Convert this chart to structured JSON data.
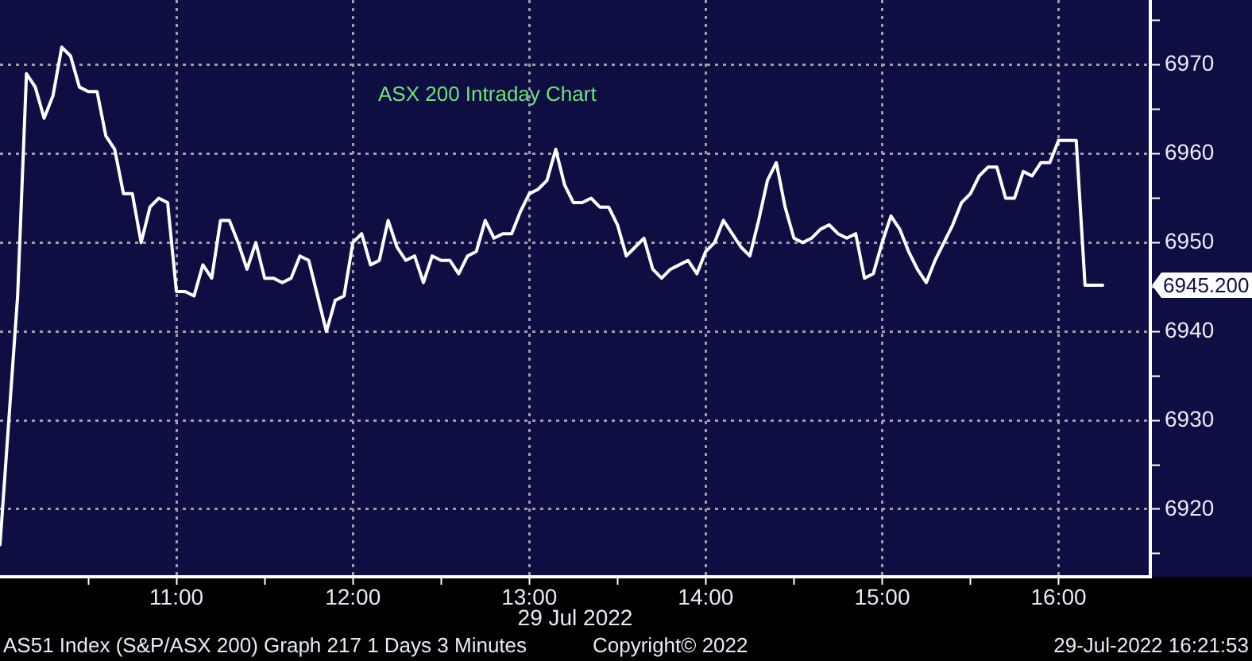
{
  "chart_data": {
    "type": "line",
    "title": "ASX 200 Intraday Chart",
    "xlabel": "29 Jul 2022",
    "x": [
      10,
      10.05,
      10.1,
      10.15,
      10.2,
      10.25,
      10.3,
      10.35,
      10.4,
      10.45,
      10.5,
      10.55,
      10.6,
      10.65,
      10.7,
      10.75,
      10.8,
      10.85,
      10.9,
      10.95,
      11,
      11.05,
      11.1,
      11.15,
      11.2,
      11.25,
      11.3,
      11.35,
      11.4,
      11.45,
      11.5,
      11.55,
      11.6,
      11.65,
      11.7,
      11.75,
      11.8,
      11.85,
      11.9,
      11.95,
      12,
      12.05,
      12.1,
      12.15,
      12.2,
      12.25,
      12.3,
      12.35,
      12.4,
      12.45,
      12.5,
      12.55,
      12.6,
      12.65,
      12.7,
      12.75,
      12.8,
      12.85,
      12.9,
      12.95,
      13,
      13.05,
      13.1,
      13.15,
      13.2,
      13.25,
      13.3,
      13.35,
      13.4,
      13.45,
      13.5,
      13.55,
      13.6,
      13.65,
      13.7,
      13.75,
      13.8,
      13.85,
      13.9,
      13.95,
      14,
      14.05,
      14.1,
      14.15,
      14.2,
      14.25,
      14.3,
      14.35,
      14.4,
      14.45,
      14.5,
      14.55,
      14.6,
      14.65,
      14.7,
      14.75,
      14.8,
      14.85,
      14.9,
      14.95,
      15,
      15.05,
      15.1,
      15.15,
      15.2,
      15.25,
      15.3,
      15.35,
      15.4,
      15.45,
      15.5,
      15.55,
      15.6,
      15.65,
      15.7,
      15.75,
      15.8,
      15.85,
      15.9,
      15.95,
      16,
      16.05,
      16.1,
      16.15,
      16.2,
      16.25
    ],
    "values": [
      6916,
      6930,
      6944,
      6969,
      6967.5,
      6964,
      6966.5,
      6972,
      6971,
      6967.5,
      6967,
      6967,
      6962,
      6960.5,
      6955.5,
      6955.5,
      6950,
      6954,
      6955,
      6954.5,
      6944.5,
      6944.5,
      6944,
      6947.5,
      6946,
      6952.5,
      6952.5,
      6950,
      6947,
      6950,
      6946,
      6946,
      6945.5,
      6946,
      6948.5,
      6948,
      6944,
      6940,
      6943.5,
      6944,
      6950,
      6951,
      6947.5,
      6948,
      6952.5,
      6949.5,
      6948,
      6948.5,
      6945.5,
      6948.5,
      6948,
      6948,
      6946.5,
      6948.5,
      6949,
      6952.5,
      6950.5,
      6951,
      6951,
      6953.5,
      6955.5,
      6956,
      6957,
      6960.5,
      6956.5,
      6954.5,
      6954.5,
      6955,
      6954,
      6954,
      6952,
      6948.5,
      6949.5,
      6950.5,
      6947,
      6946,
      6947,
      6947.5,
      6948,
      6946.5,
      6949,
      6950,
      6952.5,
      6951,
      6949.5,
      6948.5,
      6952.5,
      6957,
      6959,
      6954,
      6950.5,
      6950,
      6950.5,
      6951.5,
      6952,
      6951,
      6950.5,
      6951,
      6946,
      6946.5,
      6950,
      6953,
      6951.5,
      6949,
      6947,
      6945.5,
      6948,
      6950,
      6952,
      6954.5,
      6955.5,
      6957.5,
      6958.5,
      6958.5,
      6955,
      6955,
      6958,
      6957.5,
      6959,
      6959,
      6961.5,
      6961.5,
      6961.5,
      6945.2,
      6945.2,
      6945.2
    ],
    "color": "#ffffff",
    "marker": "none",
    "grid": true,
    "xlim": [
      10,
      16.52
    ],
    "xticks": [
      {
        "value": 10.5,
        "label": null
      },
      {
        "value": 11,
        "label": "11:00"
      },
      {
        "value": 11.5,
        "label": null
      },
      {
        "value": 12,
        "label": "12:00"
      },
      {
        "value": 12.5,
        "label": null
      },
      {
        "value": 13,
        "label": "13:00"
      },
      {
        "value": 13.5,
        "label": null
      },
      {
        "value": 14,
        "label": "14:00"
      },
      {
        "value": 14.5,
        "label": null
      },
      {
        "value": 15,
        "label": "15:00"
      },
      {
        "value": 15.5,
        "label": null
      },
      {
        "value": 16,
        "label": "16:00"
      }
    ],
    "ylim": [
      6912.4,
      6977.3
    ],
    "yticks": [
      {
        "value": 6915,
        "label": null
      },
      6920,
      {
        "value": 6925,
        "label": null
      },
      6930,
      {
        "value": 6935,
        "label": null
      },
      6940,
      {
        "value": 6945,
        "label": null
      },
      6950,
      {
        "value": 6955,
        "label": null
      },
      6960,
      {
        "value": 6965,
        "label": null
      },
      6970,
      {
        "value": 6975,
        "label": null
      }
    ],
    "annotations": [
      "6945.200",
      "AS51 Index (S&P/ASX 200) Graph 217 1 Days 3 Minutes",
      "Copyright© 2022",
      "29-Jul-2022 16:21:53"
    ]
  }
}
